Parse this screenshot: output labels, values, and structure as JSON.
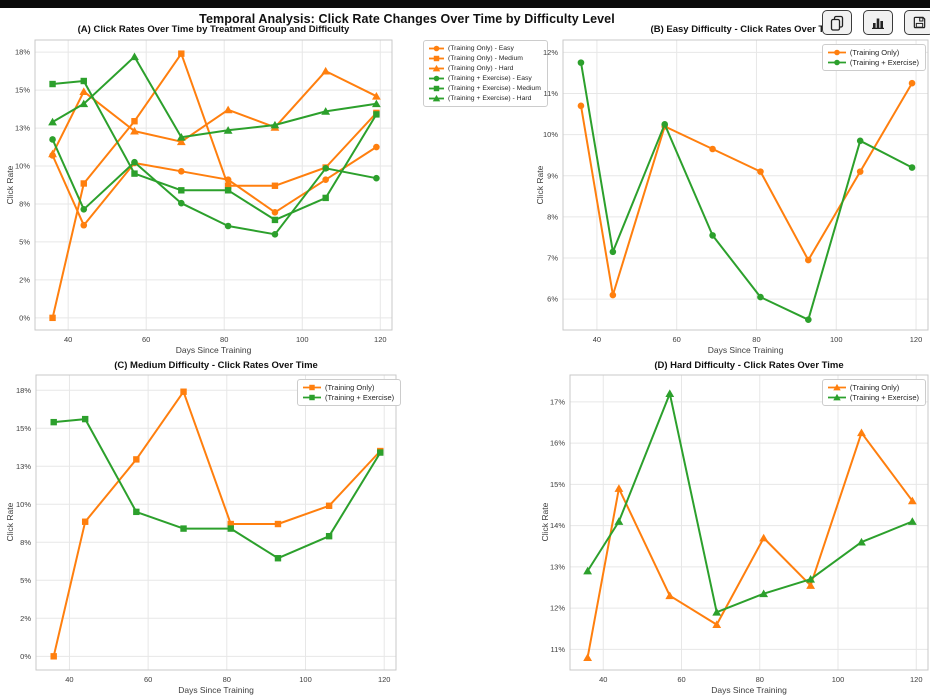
{
  "header": {
    "title": "Temporal Analysis: Click Rate Changes Over Time by Difficulty Level"
  },
  "toolbar": {
    "buttons": [
      "copy-icon",
      "bar-chart-icon",
      "save-icon"
    ]
  },
  "colors": {
    "orange": "#ff7f0e",
    "green": "#2ca02c",
    "grid": "#e7e7e7",
    "spine": "#c9c9c9",
    "tick_text": "#3d3d3d",
    "topbar": "#0a0a0a"
  },
  "chart_data": [
    {
      "type": "line",
      "title": "(A) Click Rates Over Time by Treatment Group and Difficulty",
      "xlabel": "Days Since Training",
      "ylabel": "Click Rate",
      "grid": true,
      "legend_position": "outside-right",
      "x": [
        36,
        44,
        57,
        69,
        81,
        93,
        106,
        119
      ],
      "xlim": [
        31.5,
        123
      ],
      "ylim": [
        -0.8,
        18.3
      ],
      "xticks": [
        40,
        60,
        80,
        100,
        120
      ],
      "yticks": [
        {
          "v": 0,
          "label": "0%"
        },
        {
          "v": 2.5,
          "label": "2%"
        },
        {
          "v": 5,
          "label": "5%"
        },
        {
          "v": 7.5,
          "label": "8%"
        },
        {
          "v": 10,
          "label": "10%"
        },
        {
          "v": 12.5,
          "label": "13%"
        },
        {
          "v": 15,
          "label": "15%"
        },
        {
          "v": 17.5,
          "label": "18%"
        }
      ],
      "series": [
        {
          "name": "(Training Only) - Easy",
          "color": "#ff7f0e",
          "marker": "circle",
          "values": [
            10.7,
            6.1,
            10.2,
            9.65,
            9.1,
            6.95,
            9.1,
            11.25
          ]
        },
        {
          "name": "(Training Only) - Medium",
          "color": "#ff7f0e",
          "marker": "square",
          "values": [
            0.0,
            8.85,
            12.95,
            17.4,
            8.7,
            8.7,
            9.9,
            13.5
          ]
        },
        {
          "name": "(Training Only) - Hard",
          "color": "#ff7f0e",
          "marker": "triangle",
          "values": [
            10.8,
            14.9,
            12.3,
            11.6,
            13.7,
            12.55,
            16.25,
            14.6
          ]
        },
        {
          "name": "(Training + Exercise) - Easy",
          "color": "#2ca02c",
          "marker": "circle",
          "values": [
            11.75,
            7.15,
            10.25,
            7.55,
            6.05,
            5.5,
            9.85,
            9.2
          ]
        },
        {
          "name": "(Training + Exercise) - Medium",
          "color": "#2ca02c",
          "marker": "square",
          "values": [
            15.4,
            15.6,
            9.5,
            8.4,
            8.4,
            6.45,
            7.9,
            13.4
          ]
        },
        {
          "name": "(Training + Exercise) - Hard",
          "color": "#2ca02c",
          "marker": "triangle",
          "values": [
            12.9,
            14.1,
            17.2,
            11.9,
            12.35,
            12.7,
            13.6,
            14.1
          ]
        }
      ]
    },
    {
      "type": "line",
      "title": "(B) Easy Difficulty - Click Rates Over Time",
      "xlabel": "Days Since Training",
      "ylabel": "Click Rate",
      "grid": true,
      "legend_position": "inside-top-right",
      "x": [
        36,
        44,
        57,
        69,
        81,
        93,
        106,
        119
      ],
      "xlim": [
        31.5,
        123
      ],
      "ylim": [
        5.25,
        12.3
      ],
      "xticks": [
        40,
        60,
        80,
        100,
        120
      ],
      "yticks": [
        {
          "v": 6,
          "label": "6%"
        },
        {
          "v": 7,
          "label": "7%"
        },
        {
          "v": 8,
          "label": "8%"
        },
        {
          "v": 9,
          "label": "9%"
        },
        {
          "v": 10,
          "label": "10%"
        },
        {
          "v": 11,
          "label": "11%"
        },
        {
          "v": 12,
          "label": "12%"
        }
      ],
      "series": [
        {
          "name": "(Training Only)",
          "color": "#ff7f0e",
          "marker": "circle",
          "values": [
            10.7,
            6.1,
            10.2,
            9.65,
            9.1,
            6.95,
            9.1,
            11.25
          ]
        },
        {
          "name": "(Training + Exercise)",
          "color": "#2ca02c",
          "marker": "circle",
          "values": [
            11.75,
            7.15,
            10.25,
            7.55,
            6.05,
            5.5,
            9.85,
            9.2
          ]
        }
      ]
    },
    {
      "type": "line",
      "title": "(C) Medium Difficulty - Click Rates Over Time",
      "xlabel": "Days Since Training",
      "ylabel": "Click Rate",
      "grid": true,
      "legend_position": "inside-top-right",
      "x": [
        36,
        44,
        57,
        69,
        81,
        93,
        106,
        119
      ],
      "xlim": [
        31.5,
        123
      ],
      "ylim": [
        -0.9,
        18.5
      ],
      "xticks": [
        40,
        60,
        80,
        100,
        120
      ],
      "yticks": [
        {
          "v": 0,
          "label": "0%"
        },
        {
          "v": 2.5,
          "label": "2%"
        },
        {
          "v": 5,
          "label": "5%"
        },
        {
          "v": 7.5,
          "label": "8%"
        },
        {
          "v": 10,
          "label": "10%"
        },
        {
          "v": 12.5,
          "label": "13%"
        },
        {
          "v": 15,
          "label": "15%"
        },
        {
          "v": 17.5,
          "label": "18%"
        }
      ],
      "series": [
        {
          "name": "(Training Only)",
          "color": "#ff7f0e",
          "marker": "square",
          "values": [
            0.0,
            8.85,
            12.95,
            17.4,
            8.7,
            8.7,
            9.9,
            13.5
          ]
        },
        {
          "name": "(Training + Exercise)",
          "color": "#2ca02c",
          "marker": "square",
          "values": [
            15.4,
            15.6,
            9.5,
            8.4,
            8.4,
            6.45,
            7.9,
            13.4
          ]
        }
      ]
    },
    {
      "type": "line",
      "title": "(D) Hard Difficulty - Click Rates Over Time",
      "xlabel": "Days Since Training",
      "ylabel": "Click Rate",
      "grid": true,
      "legend_position": "inside-top-right",
      "x": [
        36,
        44,
        57,
        69,
        81,
        93,
        106,
        119
      ],
      "xlim": [
        31.5,
        123
      ],
      "ylim": [
        10.5,
        17.65
      ],
      "xticks": [
        40,
        60,
        80,
        100,
        120
      ],
      "yticks": [
        {
          "v": 11,
          "label": "11%"
        },
        {
          "v": 12,
          "label": "12%"
        },
        {
          "v": 13,
          "label": "13%"
        },
        {
          "v": 14,
          "label": "14%"
        },
        {
          "v": 15,
          "label": "15%"
        },
        {
          "v": 16,
          "label": "16%"
        },
        {
          "v": 17,
          "label": "17%"
        }
      ],
      "series": [
        {
          "name": "(Training Only)",
          "color": "#ff7f0e",
          "marker": "triangle",
          "values": [
            10.8,
            14.9,
            12.3,
            11.6,
            13.7,
            12.55,
            16.25,
            14.6
          ]
        },
        {
          "name": "(Training + Exercise)",
          "color": "#2ca02c",
          "marker": "triangle",
          "values": [
            12.9,
            14.1,
            17.2,
            11.9,
            12.35,
            12.7,
            13.6,
            14.1
          ]
        }
      ]
    }
  ]
}
